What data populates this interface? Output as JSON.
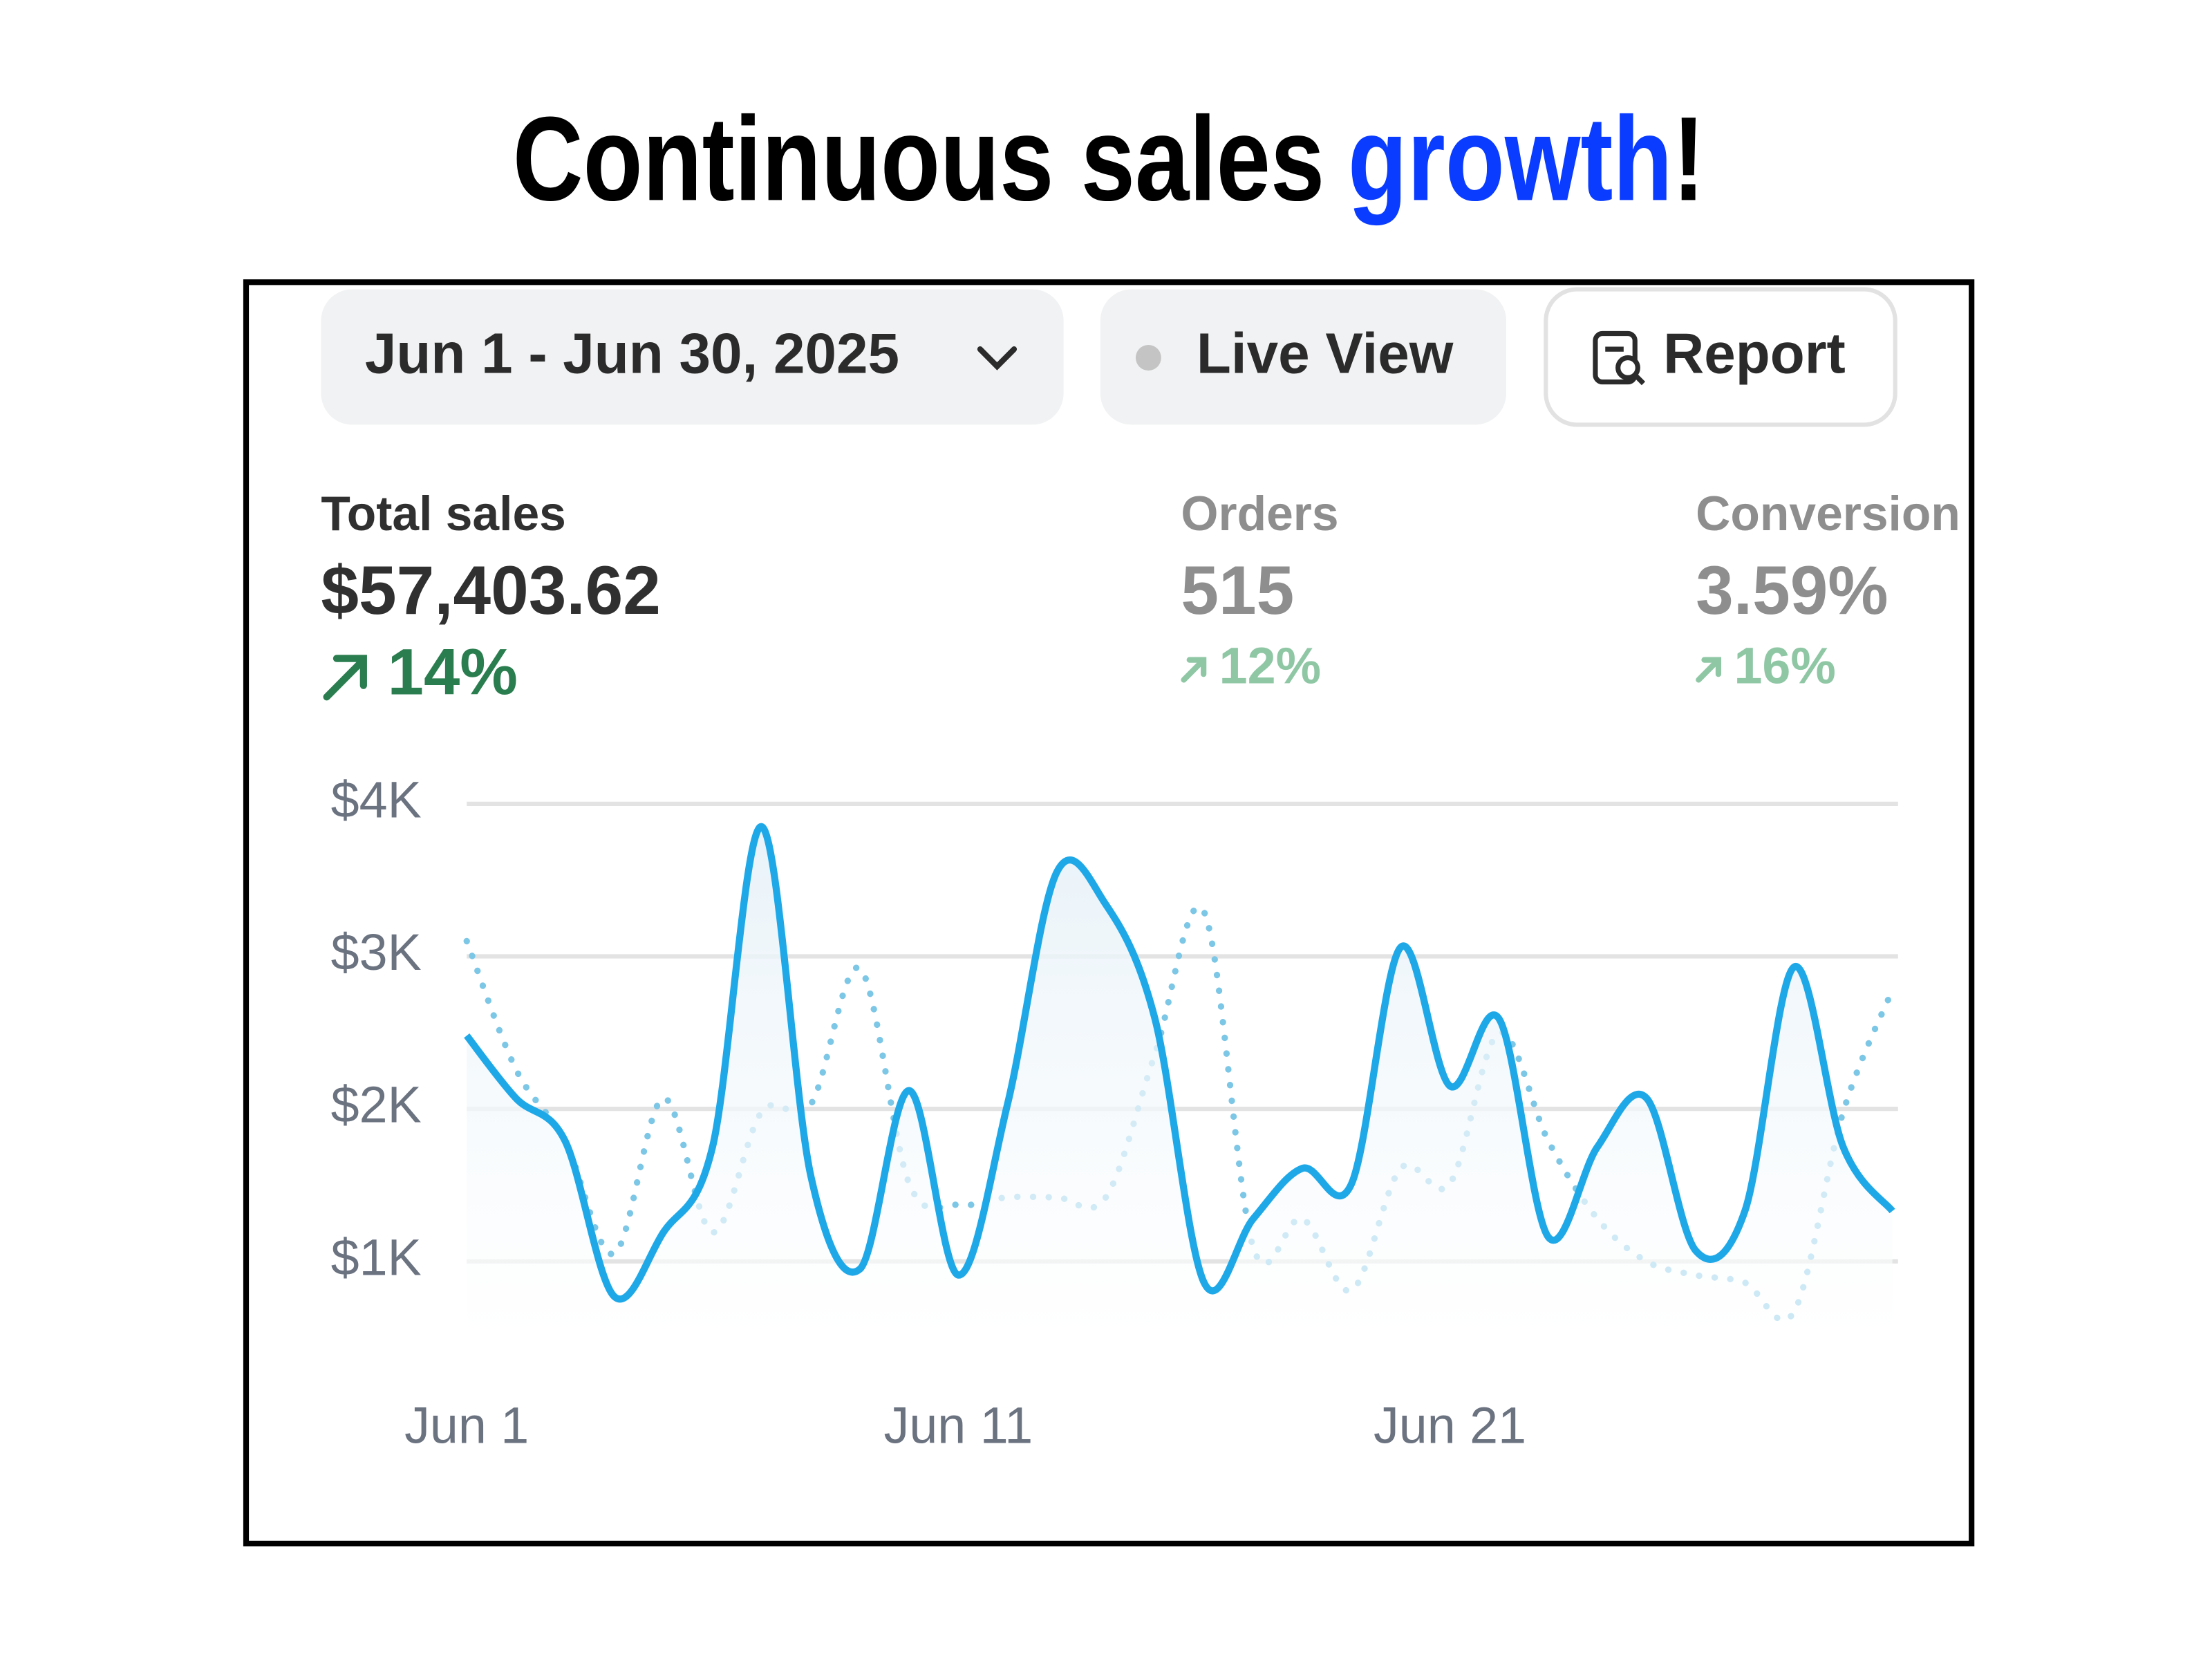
{
  "header": {
    "title": [
      "Continuous sales",
      "growth",
      "!"
    ]
  },
  "toolbar": {
    "date_range": "Jun 1 - Jun 30, 2025",
    "live_view": "Live View",
    "report": "Report"
  },
  "metrics": [
    {
      "label": "Total sales",
      "value": "$57,403.62",
      "change": "14%"
    },
    {
      "label": "Orders",
      "value": "515",
      "change": "12%"
    },
    {
      "label": "Conversion",
      "value": "3.59%",
      "change": "16%"
    }
  ],
  "chart_data": {
    "type": "line",
    "categories": [
      "Jun 1",
      null,
      null,
      null,
      null,
      null,
      null,
      null,
      null,
      null,
      "Jun 11",
      null,
      null,
      null,
      null,
      null,
      null,
      null,
      null,
      null,
      "Jun 21",
      null,
      null,
      null,
      null,
      null,
      null,
      null,
      null,
      null
    ],
    "series": [
      {
        "color": "#1fa8e8",
        "style": "solid",
        "values": [
          2480,
          2070,
          1790,
          770,
          1190,
          1750,
          3850,
          1560,
          950,
          2120,
          910,
          2030,
          3550,
          3340,
          2590,
          860,
          1280,
          1610,
          1510,
          3060,
          2150,
          2590,
          1160,
          1750,
          2070,
          1070,
          1330,
          2930,
          1750,
          1330
        ]
      },
      {
        "color": "#7cc6e6",
        "style": "dotted",
        "values": [
          3100,
          2260,
          1790,
          1050,
          2070,
          1190,
          1980,
          2030,
          2920,
          1510,
          1370,
          1420,
          1420,
          1420,
          2360,
          3290,
          1090,
          1280,
          810,
          1610,
          1510,
          2500,
          1790,
          1280,
          1000,
          910,
          860,
          670,
          1980,
          2780
        ]
      }
    ],
    "ylim": [
      500,
      4000
    ],
    "yticks": [
      {
        "value": 1000,
        "label": "$1K"
      },
      {
        "value": 2000,
        "label": "$2K"
      },
      {
        "value": 3000,
        "label": "$3K"
      },
      {
        "value": 4000,
        "label": "$4K"
      }
    ],
    "grid": true
  }
}
